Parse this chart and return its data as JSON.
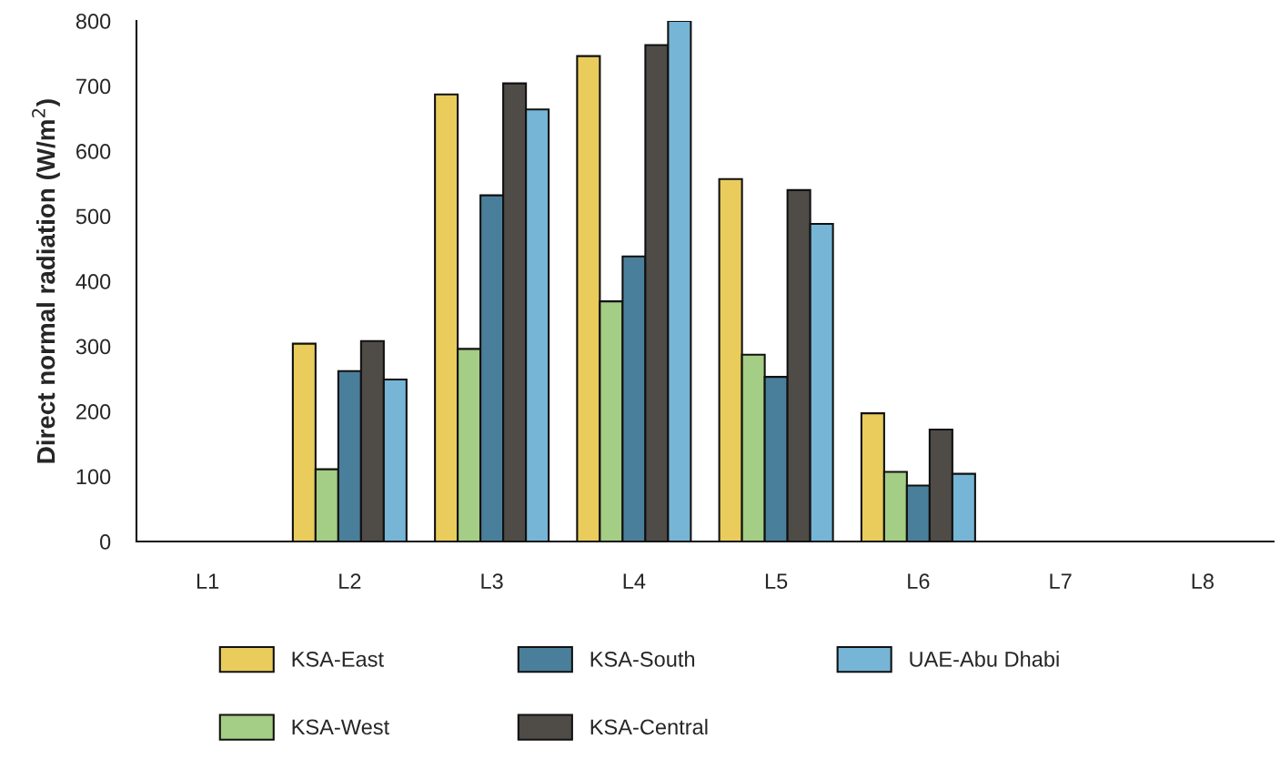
{
  "chart_data": {
    "type": "bar",
    "ylabel": "Direct normal radiation (W/m$^{2}$)",
    "categories": [
      "L1",
      "L2",
      "L3",
      "L4",
      "L5",
      "L6",
      "L7",
      "L8"
    ],
    "series": [
      {
        "name": "KSA-East",
        "color": "#e9cc5c",
        "values": [
          null,
          304,
          687,
          746,
          557,
          197,
          null,
          null
        ]
      },
      {
        "name": "KSA-West",
        "color": "#a4cd85",
        "values": [
          null,
          111,
          296,
          369,
          287,
          107,
          null,
          null
        ]
      },
      {
        "name": "KSA-South",
        "color": "#4a7f9b",
        "values": [
          null,
          262,
          532,
          438,
          253,
          86,
          null,
          null
        ]
      },
      {
        "name": "KSA-Central",
        "color": "#4f4b47",
        "values": [
          null,
          308,
          704,
          763,
          540,
          172,
          null,
          null
        ]
      },
      {
        "name": "UAE-Abu Dhabi",
        "color": "#76b5d5",
        "values": [
          null,
          249,
          664,
          800,
          488,
          104,
          null,
          null
        ]
      }
    ],
    "ylim": [
      0,
      800
    ],
    "yticks": [
      0,
      100,
      200,
      300,
      400,
      500,
      600,
      700,
      800
    ],
    "grid": false,
    "legend": "bottom"
  }
}
